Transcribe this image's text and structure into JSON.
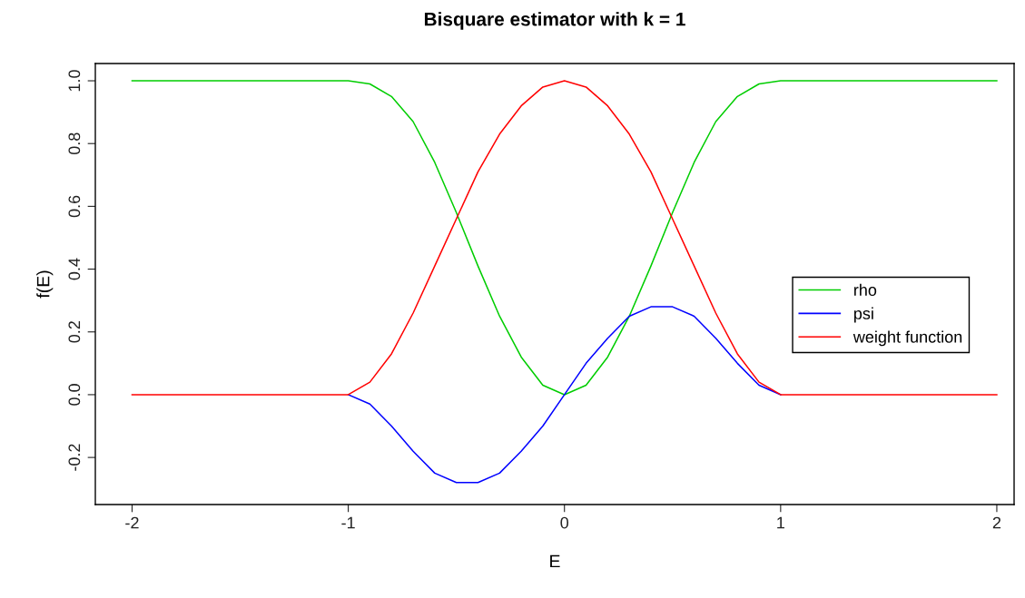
{
  "chart_data": {
    "type": "line",
    "title": "Bisquare estimator with k = 1",
    "xlabel": "E",
    "ylabel": "f(E)",
    "x": [
      -2,
      -1,
      -0.9,
      -0.8,
      -0.7,
      -0.6,
      -0.5,
      -0.4,
      -0.3,
      -0.2,
      -0.1,
      0,
      0.1,
      0.2,
      0.3,
      0.4,
      0.5,
      0.6,
      0.7,
      0.8,
      0.9,
      1,
      2
    ],
    "series": [
      {
        "name": "rho",
        "color": "#00cd00",
        "values": [
          1,
          1,
          0.99,
          0.95,
          0.87,
          0.74,
          0.58,
          0.41,
          0.25,
          0.12,
          0.03,
          0,
          0.03,
          0.12,
          0.25,
          0.41,
          0.58,
          0.74,
          0.87,
          0.95,
          0.99,
          1,
          1
        ]
      },
      {
        "name": "psi",
        "color": "#0000ff",
        "values": [
          null,
          0,
          -0.03,
          -0.1,
          -0.18,
          -0.25,
          -0.28,
          -0.28,
          -0.25,
          -0.18,
          -0.1,
          0,
          0.1,
          0.18,
          0.25,
          0.28,
          0.28,
          0.25,
          0.18,
          0.1,
          0.03,
          0,
          null
        ]
      },
      {
        "name": "weight function",
        "color": "#ff0000",
        "values": [
          0,
          0,
          0.04,
          0.13,
          0.26,
          0.41,
          0.56,
          0.71,
          0.83,
          0.92,
          0.98,
          1,
          0.98,
          0.92,
          0.83,
          0.71,
          0.56,
          0.41,
          0.26,
          0.13,
          0.04,
          0,
          0
        ]
      }
    ],
    "xlim": [
      -2.17,
      2.08
    ],
    "ylim": [
      -0.35,
      1.055
    ],
    "xticks": [
      -2,
      -1,
      0,
      1,
      2
    ],
    "yticks": [
      -0.2,
      {
        "value": 0,
        "label": "0.0"
      },
      0.2,
      0.4,
      0.6,
      0.8,
      {
        "value": 1,
        "label": "1.0"
      }
    ],
    "grid": false,
    "legend": "right",
    "marker": "none",
    "line_style": "solid"
  }
}
